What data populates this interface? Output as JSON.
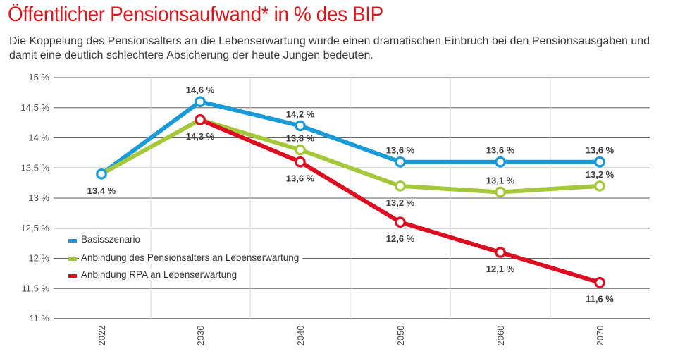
{
  "header": {
    "title": "Öffentlicher Pensionsaufwand* in % des BIP",
    "subtitle": "Die Koppelung des Pensionsalters an die Lebenserwartung würde einen dramatischen Einbruch bei den Pensionsausgaben und damit eine deutlich schlechtere Absicherung der heute Jungen bedeuten."
  },
  "chart_data": {
    "type": "line",
    "title": "Öffentlicher Pensionsaufwand* in % des BIP",
    "categories": [
      "2022",
      "2030",
      "2040",
      "2050",
      "2060",
      "2070"
    ],
    "ylim": [
      11,
      15
    ],
    "y_ticks": [
      "15 %",
      "14,5 %",
      "14 %",
      "13,5 %",
      "13 %",
      "12,5 %",
      "12 %",
      "11,5 %",
      "11 %"
    ],
    "grid": true,
    "legend_position": "left-middle",
    "series": [
      {
        "name": "Basisszenario",
        "color": "#1a9ad6",
        "values": [
          13.4,
          14.6,
          14.2,
          13.6,
          13.6,
          13.6
        ],
        "labels": [
          "13,4 %",
          "14,6 %",
          "14,2 %",
          "13,6 %",
          "13,6 %",
          "13,6 %"
        ]
      },
      {
        "name": "Anbindung des Pensionsalters an Lebenserwartung",
        "color": "#a5c83b",
        "values": [
          13.4,
          14.3,
          13.8,
          13.2,
          13.1,
          13.2
        ],
        "labels": [
          "",
          "14,3 %",
          "13,8 %",
          "13,2 %",
          "13,1 %",
          "13,2 %"
        ]
      },
      {
        "name": "Anbindung RPA an Lebenserwartung",
        "color": "#dd0d22",
        "values": [
          null,
          14.3,
          13.6,
          12.6,
          12.1,
          11.6
        ],
        "labels": [
          "",
          "",
          "13,6 %",
          "12,6 %",
          "12,1 %",
          "11,6 %"
        ]
      }
    ]
  }
}
